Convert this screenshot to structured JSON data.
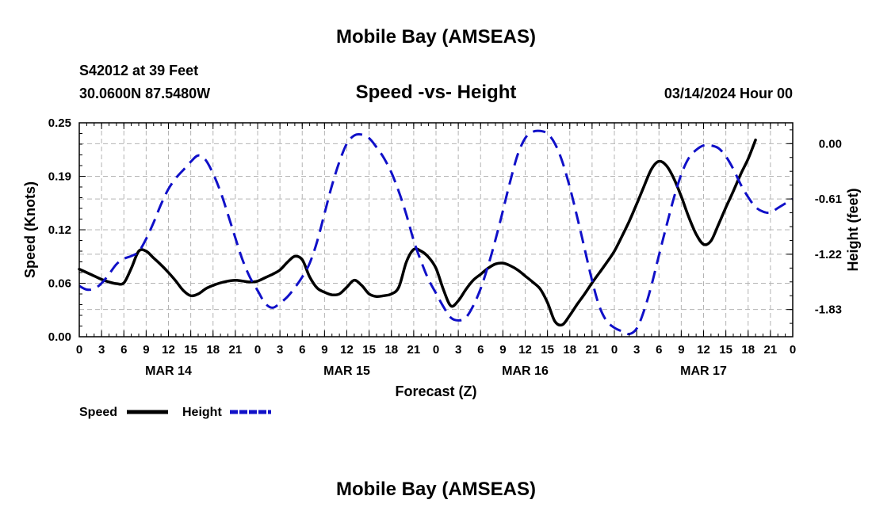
{
  "page_title": "Mobile Bay (AMSEAS)",
  "footer_title": "Mobile Bay (AMSEAS)",
  "station": "S42012 at 39 Feet",
  "coords": "30.0600N  87.5480W",
  "date_label": "03/14/2024 Hour 00",
  "chart_data": {
    "type": "line",
    "title": "Speed -vs- Height",
    "xlabel": "Forecast (Z)",
    "ylabel_left": "Speed (Knots)",
    "ylabel_right": "Height (feet)",
    "x_hours_range": [
      0,
      96
    ],
    "x_tick_labels": [
      "0",
      "3",
      "6",
      "9",
      "12",
      "15",
      "18",
      "21",
      "0",
      "3",
      "6",
      "9",
      "12",
      "15",
      "18",
      "21",
      "0",
      "3",
      "6",
      "9",
      "12",
      "15",
      "18",
      "21",
      "0",
      "3",
      "6",
      "9",
      "12",
      "15",
      "18",
      "21",
      "0"
    ],
    "day_labels": [
      "MAR 14",
      "MAR 15",
      "MAR 16",
      "MAR 17"
    ],
    "y_left_range": [
      0.0,
      0.25
    ],
    "y_left_ticks": [
      "0.00",
      "0.06",
      "0.12",
      "0.19",
      "0.25"
    ],
    "y_right_range": [
      -2.13,
      0.23
    ],
    "y_right_ticks": [
      "0.00",
      "-0.61",
      "-1.22",
      "-1.83"
    ],
    "grid": true,
    "series": [
      {
        "name": "Speed",
        "color": "#000000",
        "dash": "solid",
        "axis": "left",
        "points": [
          [
            0,
            0.079
          ],
          [
            1,
            0.075
          ],
          [
            2,
            0.071
          ],
          [
            3,
            0.067
          ],
          [
            4,
            0.064
          ],
          [
            5,
            0.062
          ],
          [
            6,
            0.063
          ],
          [
            7,
            0.08
          ],
          [
            8,
            0.1
          ],
          [
            9,
            0.1
          ],
          [
            10,
            0.092
          ],
          [
            11,
            0.084
          ],
          [
            12,
            0.075
          ],
          [
            13,
            0.065
          ],
          [
            14,
            0.054
          ],
          [
            15,
            0.048
          ],
          [
            16,
            0.05
          ],
          [
            17,
            0.056
          ],
          [
            18,
            0.06
          ],
          [
            19,
            0.063
          ],
          [
            20,
            0.065
          ],
          [
            21,
            0.066
          ],
          [
            22,
            0.065
          ],
          [
            23,
            0.064
          ],
          [
            24,
            0.065
          ],
          [
            25,
            0.069
          ],
          [
            26,
            0.073
          ],
          [
            27,
            0.078
          ],
          [
            28,
            0.087
          ],
          [
            29,
            0.094
          ],
          [
            30,
            0.09
          ],
          [
            31,
            0.07
          ],
          [
            32,
            0.057
          ],
          [
            33,
            0.052
          ],
          [
            34,
            0.049
          ],
          [
            35,
            0.05
          ],
          [
            36,
            0.058
          ],
          [
            37,
            0.066
          ],
          [
            38,
            0.06
          ],
          [
            39,
            0.05
          ],
          [
            40,
            0.047
          ],
          [
            41,
            0.048
          ],
          [
            42,
            0.05
          ],
          [
            43,
            0.058
          ],
          [
            44,
            0.087
          ],
          [
            45,
            0.102
          ],
          [
            46,
            0.1
          ],
          [
            47,
            0.093
          ],
          [
            48,
            0.08
          ],
          [
            49,
            0.055
          ],
          [
            50,
            0.036
          ],
          [
            51,
            0.042
          ],
          [
            52,
            0.055
          ],
          [
            53,
            0.066
          ],
          [
            54,
            0.073
          ],
          [
            55,
            0.08
          ],
          [
            56,
            0.085
          ],
          [
            57,
            0.086
          ],
          [
            58,
            0.083
          ],
          [
            59,
            0.078
          ],
          [
            60,
            0.071
          ],
          [
            61,
            0.064
          ],
          [
            62,
            0.056
          ],
          [
            63,
            0.04
          ],
          [
            64,
            0.018
          ],
          [
            65,
            0.014
          ],
          [
            66,
            0.025
          ],
          [
            67,
            0.038
          ],
          [
            68,
            0.05
          ],
          [
            69,
            0.063
          ],
          [
            70,
            0.075
          ],
          [
            71,
            0.087
          ],
          [
            72,
            0.1
          ],
          [
            73,
            0.117
          ],
          [
            74,
            0.135
          ],
          [
            75,
            0.155
          ],
          [
            76,
            0.176
          ],
          [
            77,
            0.196
          ],
          [
            78,
            0.205
          ],
          [
            79,
            0.2
          ],
          [
            80,
            0.185
          ],
          [
            81,
            0.164
          ],
          [
            82,
            0.14
          ],
          [
            83,
            0.12
          ],
          [
            84,
            0.108
          ],
          [
            85,
            0.112
          ],
          [
            86,
            0.131
          ],
          [
            87,
            0.151
          ],
          [
            88,
            0.17
          ],
          [
            89,
            0.19
          ],
          [
            90,
            0.208
          ],
          [
            91,
            0.23
          ]
        ]
      },
      {
        "name": "Height",
        "color": "#1010c8",
        "dash": "dashed",
        "axis": "right",
        "points": [
          [
            0,
            -1.57
          ],
          [
            1,
            -1.61
          ],
          [
            2,
            -1.6
          ],
          [
            3,
            -1.54
          ],
          [
            4,
            -1.44
          ],
          [
            5,
            -1.33
          ],
          [
            6,
            -1.27
          ],
          [
            7,
            -1.24
          ],
          [
            8,
            -1.19
          ],
          [
            9,
            -1.05
          ],
          [
            10,
            -0.87
          ],
          [
            11,
            -0.67
          ],
          [
            12,
            -0.5
          ],
          [
            13,
            -0.38
          ],
          [
            14,
            -0.29
          ],
          [
            15,
            -0.2
          ],
          [
            16,
            -0.13
          ],
          [
            17,
            -0.18
          ],
          [
            18,
            -0.33
          ],
          [
            19,
            -0.53
          ],
          [
            20,
            -0.78
          ],
          [
            21,
            -1.04
          ],
          [
            22,
            -1.29
          ],
          [
            23,
            -1.48
          ],
          [
            24,
            -1.62
          ],
          [
            25,
            -1.76
          ],
          [
            26,
            -1.81
          ],
          [
            27,
            -1.76
          ],
          [
            28,
            -1.69
          ],
          [
            29,
            -1.59
          ],
          [
            30,
            -1.47
          ],
          [
            31,
            -1.32
          ],
          [
            32,
            -1.08
          ],
          [
            33,
            -0.77
          ],
          [
            34,
            -0.46
          ],
          [
            35,
            -0.2
          ],
          [
            36,
            0.0
          ],
          [
            37,
            0.09
          ],
          [
            38,
            0.1
          ],
          [
            39,
            0.06
          ],
          [
            40,
            -0.04
          ],
          [
            41,
            -0.16
          ],
          [
            42,
            -0.32
          ],
          [
            43,
            -0.53
          ],
          [
            44,
            -0.78
          ],
          [
            45,
            -1.07
          ],
          [
            46,
            -1.3
          ],
          [
            47,
            -1.5
          ],
          [
            48,
            -1.65
          ],
          [
            49,
            -1.8
          ],
          [
            50,
            -1.92
          ],
          [
            51,
            -1.95
          ],
          [
            52,
            -1.92
          ],
          [
            53,
            -1.79
          ],
          [
            54,
            -1.6
          ],
          [
            55,
            -1.35
          ],
          [
            56,
            -1.06
          ],
          [
            57,
            -0.74
          ],
          [
            58,
            -0.41
          ],
          [
            59,
            -0.12
          ],
          [
            60,
            0.06
          ],
          [
            61,
            0.13
          ],
          [
            62,
            0.14
          ],
          [
            63,
            0.11
          ],
          [
            64,
            0.0
          ],
          [
            65,
            -0.2
          ],
          [
            66,
            -0.48
          ],
          [
            67,
            -0.81
          ],
          [
            68,
            -1.16
          ],
          [
            69,
            -1.51
          ],
          [
            70,
            -1.8
          ],
          [
            71,
            -1.96
          ],
          [
            72,
            -2.03
          ],
          [
            73,
            -2.07
          ],
          [
            74,
            -2.1
          ],
          [
            75,
            -2.04
          ],
          [
            76,
            -1.84
          ],
          [
            77,
            -1.56
          ],
          [
            78,
            -1.23
          ],
          [
            79,
            -0.91
          ],
          [
            80,
            -0.6
          ],
          [
            81,
            -0.34
          ],
          [
            82,
            -0.16
          ],
          [
            83,
            -0.07
          ],
          [
            84,
            -0.02
          ],
          [
            85,
            -0.02
          ],
          [
            86,
            -0.05
          ],
          [
            87,
            -0.14
          ],
          [
            88,
            -0.28
          ],
          [
            89,
            -0.45
          ],
          [
            90,
            -0.59
          ],
          [
            91,
            -0.7
          ],
          [
            92,
            -0.75
          ],
          [
            93,
            -0.76
          ],
          [
            94,
            -0.71
          ],
          [
            95,
            -0.66
          ],
          [
            96,
            -0.61
          ]
        ]
      }
    ],
    "legend": [
      {
        "label": "Speed",
        "color": "#000000",
        "dash": "solid"
      },
      {
        "label": "Height",
        "color": "#1010c8",
        "dash": "dashed"
      }
    ]
  }
}
